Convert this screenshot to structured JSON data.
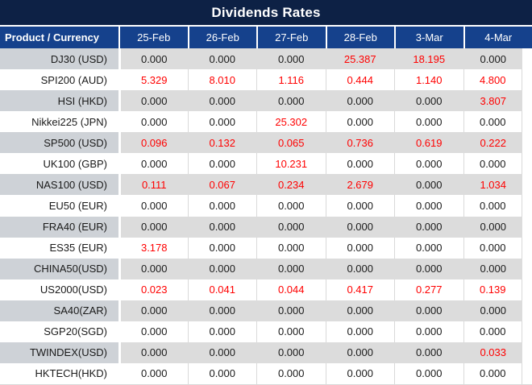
{
  "title": "Dividends Rates",
  "chart_data": {
    "type": "table",
    "title": "Dividends Rates",
    "columns": [
      "Product / Currency",
      "25-Feb",
      "26-Feb",
      "27-Feb",
      "28-Feb",
      "3-Mar",
      "4-Mar"
    ],
    "rows": [
      {
        "product": "DJ30 (USD)",
        "values": [
          "0.000",
          "0.000",
          "0.000",
          "25.387",
          "18.195",
          "0.000"
        ]
      },
      {
        "product": "SPI200 (AUD)",
        "values": [
          "5.329",
          "8.010",
          "1.116",
          "0.444",
          "1.140",
          "4.800"
        ]
      },
      {
        "product": "HSI (HKD)",
        "values": [
          "0.000",
          "0.000",
          "0.000",
          "0.000",
          "0.000",
          "3.807"
        ]
      },
      {
        "product": "Nikkei225 (JPN)",
        "values": [
          "0.000",
          "0.000",
          "25.302",
          "0.000",
          "0.000",
          "0.000"
        ]
      },
      {
        "product": "SP500 (USD)",
        "values": [
          "0.096",
          "0.132",
          "0.065",
          "0.736",
          "0.619",
          "0.222"
        ]
      },
      {
        "product": "UK100 (GBP)",
        "values": [
          "0.000",
          "0.000",
          "10.231",
          "0.000",
          "0.000",
          "0.000"
        ]
      },
      {
        "product": "NAS100 (USD)",
        "values": [
          "0.111",
          "0.067",
          "0.234",
          "2.679",
          "0.000",
          "1.034"
        ]
      },
      {
        "product": "EU50 (EUR)",
        "values": [
          "0.000",
          "0.000",
          "0.000",
          "0.000",
          "0.000",
          "0.000"
        ]
      },
      {
        "product": "FRA40 (EUR)",
        "values": [
          "0.000",
          "0.000",
          "0.000",
          "0.000",
          "0.000",
          "0.000"
        ]
      },
      {
        "product": "ES35 (EUR)",
        "values": [
          "3.178",
          "0.000",
          "0.000",
          "0.000",
          "0.000",
          "0.000"
        ]
      },
      {
        "product": "CHINA50(USD)",
        "values": [
          "0.000",
          "0.000",
          "0.000",
          "0.000",
          "0.000",
          "0.000"
        ]
      },
      {
        "product": "US2000(USD)",
        "values": [
          "0.023",
          "0.041",
          "0.044",
          "0.417",
          "0.277",
          "0.139"
        ]
      },
      {
        "product": "SA40(ZAR)",
        "values": [
          "0.000",
          "0.000",
          "0.000",
          "0.000",
          "0.000",
          "0.000"
        ]
      },
      {
        "product": "SGP20(SGD)",
        "values": [
          "0.000",
          "0.000",
          "0.000",
          "0.000",
          "0.000",
          "0.000"
        ]
      },
      {
        "product": "TWINDEX(USD)",
        "values": [
          "0.000",
          "0.000",
          "0.000",
          "0.000",
          "0.000",
          "0.033"
        ]
      },
      {
        "product": "HKTECH(HKD)",
        "values": [
          "0.000",
          "0.000",
          "0.000",
          "0.000",
          "0.000",
          "0.000"
        ]
      }
    ],
    "layout_hints": {
      "zero_display": "0.000",
      "nonzero_values_highlighted_red": true,
      "alternating_row_shading": true
    }
  },
  "colors": {
    "title_bar_bg": "#0d2145",
    "header_bg": "#15418c",
    "header_text": "#ffffff",
    "row_alt_bg": "#dcdcdc",
    "product_alt_bg": "#ced2d7",
    "zero_value_text": "#1a1a1a",
    "nonzero_value_text": "#ff0000"
  }
}
